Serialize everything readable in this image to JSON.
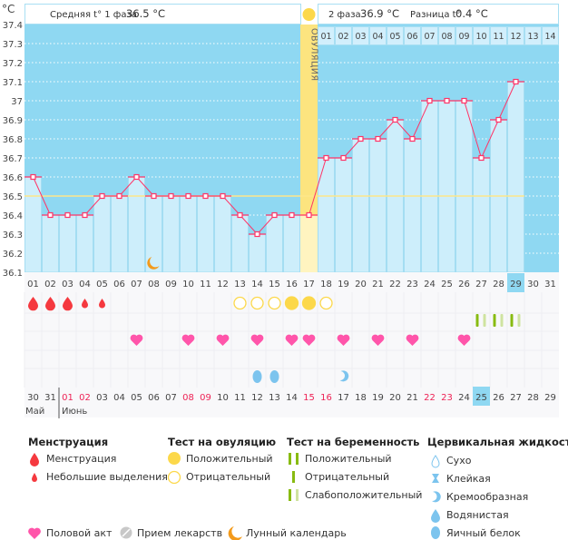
{
  "chart_data": {
    "type": "line",
    "title": "",
    "ylabel": "°C",
    "ylim": [
      36.1,
      37.4
    ],
    "yticks": [
      "37.4",
      "37.3",
      "37.2",
      "37.1",
      "37",
      "36.9",
      "36.8",
      "36.7",
      "36.6",
      "36.5",
      "36.4",
      "36.3",
      "36.2",
      "36.1"
    ],
    "cycle_days": [
      "01",
      "02",
      "03",
      "04",
      "05",
      "06",
      "07",
      "08",
      "09",
      "10",
      "11",
      "12",
      "13",
      "14",
      "15",
      "16",
      "17",
      "18",
      "19",
      "20",
      "21",
      "22",
      "23",
      "24",
      "25",
      "26",
      "27",
      "28",
      "29",
      "30",
      "31"
    ],
    "temperatures": [
      36.6,
      36.4,
      36.4,
      36.4,
      36.5,
      36.5,
      36.6,
      36.5,
      36.5,
      36.5,
      36.5,
      36.5,
      36.4,
      36.3,
      36.4,
      36.4,
      36.4,
      36.7,
      36.7,
      36.8,
      36.8,
      36.9,
      36.8,
      37.0,
      37.0,
      37.0,
      36.7,
      36.9,
      37.1
    ],
    "cover_line": 36.5,
    "ovulation_day": 17,
    "ovulation_label": "ОВУЛЯЦИЯ",
    "current_day": 29,
    "phase2_days": [
      "01",
      "02",
      "03",
      "04",
      "05",
      "06",
      "07",
      "08",
      "09",
      "10",
      "11",
      "12",
      "13",
      "14"
    ],
    "dates": [
      "30",
      "31",
      "01",
      "02",
      "03",
      "04",
      "05",
      "06",
      "07",
      "08",
      "09",
      "10",
      "11",
      "12",
      "13",
      "14",
      "15",
      "16",
      "17",
      "18",
      "19",
      "20",
      "21",
      "22",
      "23",
      "24",
      "25",
      "26",
      "27",
      "28",
      "29"
    ],
    "weekend_dates_idx": [
      3,
      4,
      10,
      11,
      17,
      18,
      24,
      25
    ],
    "months": [
      "Май",
      "Июнь"
    ],
    "menstruation": {
      "1": "heavy",
      "2": "heavy",
      "3": "heavy",
      "4": "spotting",
      "5": "spotting"
    },
    "ovulation_tests": {
      "13": "negative",
      "14": "negative",
      "15": "negative",
      "16": "positive",
      "17": "positive",
      "18": "negative"
    },
    "pregnancy_tests": {
      "27": "faint",
      "28": "faint",
      "29": "faint"
    },
    "intercourse": [
      7,
      10,
      12,
      14,
      16,
      17,
      19,
      21,
      23,
      26
    ],
    "cervical_fluid": {
      "14": "egg_white",
      "15": "egg_white",
      "19": "creamy"
    },
    "lunar": [
      8
    ]
  },
  "header": {
    "phase1": "Средняя t° 1 фаза",
    "phase1_value": "36.5 °C",
    "phase2": "2 фаза",
    "phase2_value": "36.9 °C",
    "diff": "Разница t°",
    "diff_value": "0.4 °C"
  },
  "legend": {
    "menstruation": {
      "title": "Менструация",
      "items": [
        "Менструация",
        "Небольшие выделения"
      ]
    },
    "ovulation": {
      "title": "Тест на овуляцию",
      "items": [
        "Положительный",
        "Отрицательный"
      ]
    },
    "pregnancy": {
      "title": "Тест на беременность",
      "items": [
        "Положительный",
        "Отрицательный",
        "Слабоположительный"
      ]
    },
    "cervical": {
      "title": "Цервикальная жидкость",
      "items": [
        "Сухо",
        "Клейкая",
        "Кремообразная",
        "Водянистая",
        "Яичный белок"
      ]
    },
    "other": [
      "Половой акт",
      "Прием лекарств",
      "Лунный календарь"
    ]
  },
  "colors": {
    "plot_bg": "#8fd8f2",
    "bar": "#cdeefb",
    "line": "#ff3366",
    "cover": "#fde68a",
    "ovulation": "#fce47f",
    "heart": "#ff55aa",
    "blood": "#f5393f",
    "preg": "#88bb11",
    "preg_faint": "#cfe3a0",
    "fluid": "#7cc4ee",
    "sun": "#fcd84a",
    "moon": "#f39a1b"
  }
}
